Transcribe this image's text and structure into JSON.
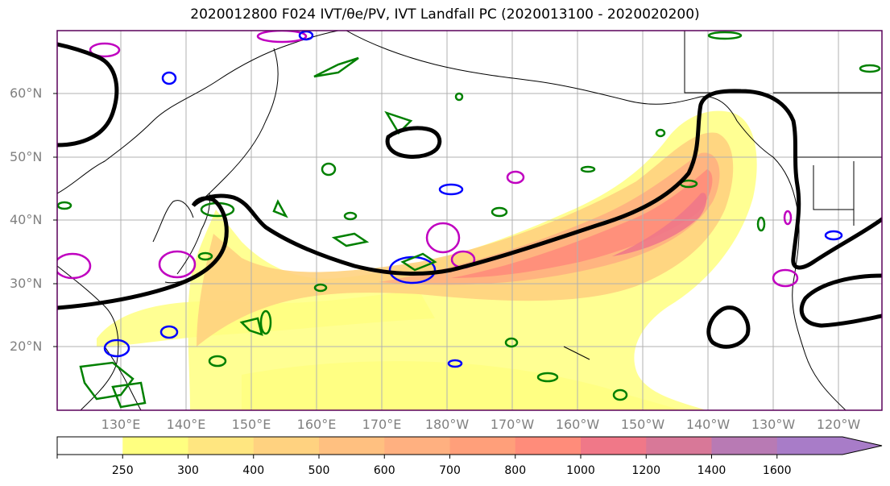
{
  "title": "2020012800 F024 IVT/θe/PV, IVT Landfall PC (2020013100 - 2020020200)",
  "lat_labels": [
    "60°N",
    "50°N",
    "40°N",
    "30°N",
    "20°N"
  ],
  "lon_labels": [
    "130°E",
    "140°E",
    "150°E",
    "160°E",
    "170°E",
    "180°W",
    "170°W",
    "160°W",
    "150°W",
    "140°W",
    "130°W",
    "120°W"
  ],
  "colorbar": {
    "ticks": [
      "250",
      "300",
      "400",
      "500",
      "600",
      "700",
      "800",
      "1000",
      "1200",
      "1400",
      "1600"
    ],
    "colors": [
      "#ffffff",
      "#ffff80",
      "#ffe680",
      "#ffd280",
      "#ffc080",
      "#ffb080",
      "#ff9f7a",
      "#ff8c7a",
      "#f07888",
      "#d87898",
      "#b87ab4",
      "#a87cc8"
    ]
  },
  "colors": {
    "pc_contour": "#000000",
    "theta_e_contour": "#008000",
    "pv_contour_blue": "#0000ff",
    "pv_contour_magenta": "#c000c0",
    "coastline": "#000000",
    "grid": "#b0b0b0",
    "frame": "#5a005a"
  }
}
